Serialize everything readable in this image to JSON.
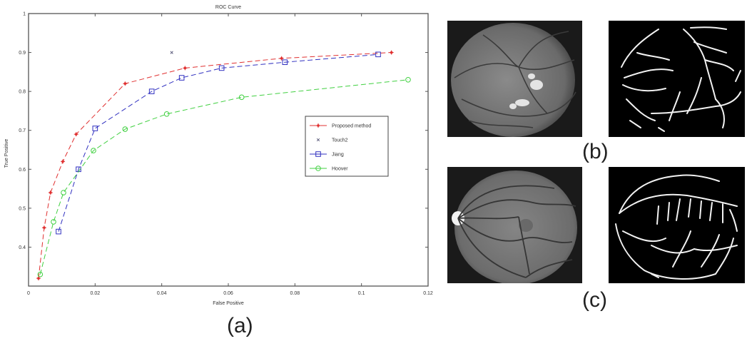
{
  "chart_data": {
    "type": "line",
    "title": "ROC Curve",
    "xlabel": "False Positive",
    "ylabel": "True Positive",
    "xlim": [
      0,
      0.12
    ],
    "ylim": [
      0.3,
      1.0
    ],
    "xticks": [
      "0",
      "0.02",
      "0.04",
      "0.06",
      "0.08",
      "0.1",
      "0.12"
    ],
    "yticks": [
      "0.4",
      "0.5",
      "0.6",
      "0.7",
      "0.8",
      "0.9",
      "1"
    ],
    "grid": false,
    "legend_position": "center-right",
    "series": [
      {
        "name": "Proposed method",
        "color": "#e03030",
        "marker": "star",
        "line": "dashed",
        "x": [
          0.003,
          0.0047,
          0.0066,
          0.0103,
          0.0143,
          0.029,
          0.047,
          0.076,
          0.109
        ],
        "y": [
          0.32,
          0.45,
          0.54,
          0.62,
          0.69,
          0.82,
          0.86,
          0.885,
          0.9
        ]
      },
      {
        "name": "Touch2",
        "color": "#555577",
        "marker": "x",
        "line": "none",
        "x": [
          0.043
        ],
        "y": [
          0.9
        ]
      },
      {
        "name": "Jiang",
        "color": "#3030c0",
        "marker": "square",
        "line": "dashed",
        "x": [
          0.009,
          0.015,
          0.02,
          0.037,
          0.046,
          0.058,
          0.077,
          0.105
        ],
        "y": [
          0.44,
          0.6,
          0.705,
          0.8,
          0.835,
          0.86,
          0.875,
          0.895
        ]
      },
      {
        "name": "Hoover",
        "color": "#40d040",
        "marker": "circle",
        "line": "dashed",
        "x": [
          0.0035,
          0.0075,
          0.0105,
          0.0195,
          0.029,
          0.0415,
          0.064,
          0.114
        ],
        "y": [
          0.33,
          0.465,
          0.54,
          0.648,
          0.703,
          0.742,
          0.785,
          0.83
        ]
      }
    ]
  },
  "captions": {
    "a": "(a)",
    "b": "(b)",
    "c": "(c)"
  },
  "images": {
    "b_fundus": "retinal fundus image with bright exudates",
    "b_vessels": "segmented vessel map",
    "c_fundus": "retinal fundus image with optic disc",
    "c_vessels": "segmented vessel map"
  }
}
